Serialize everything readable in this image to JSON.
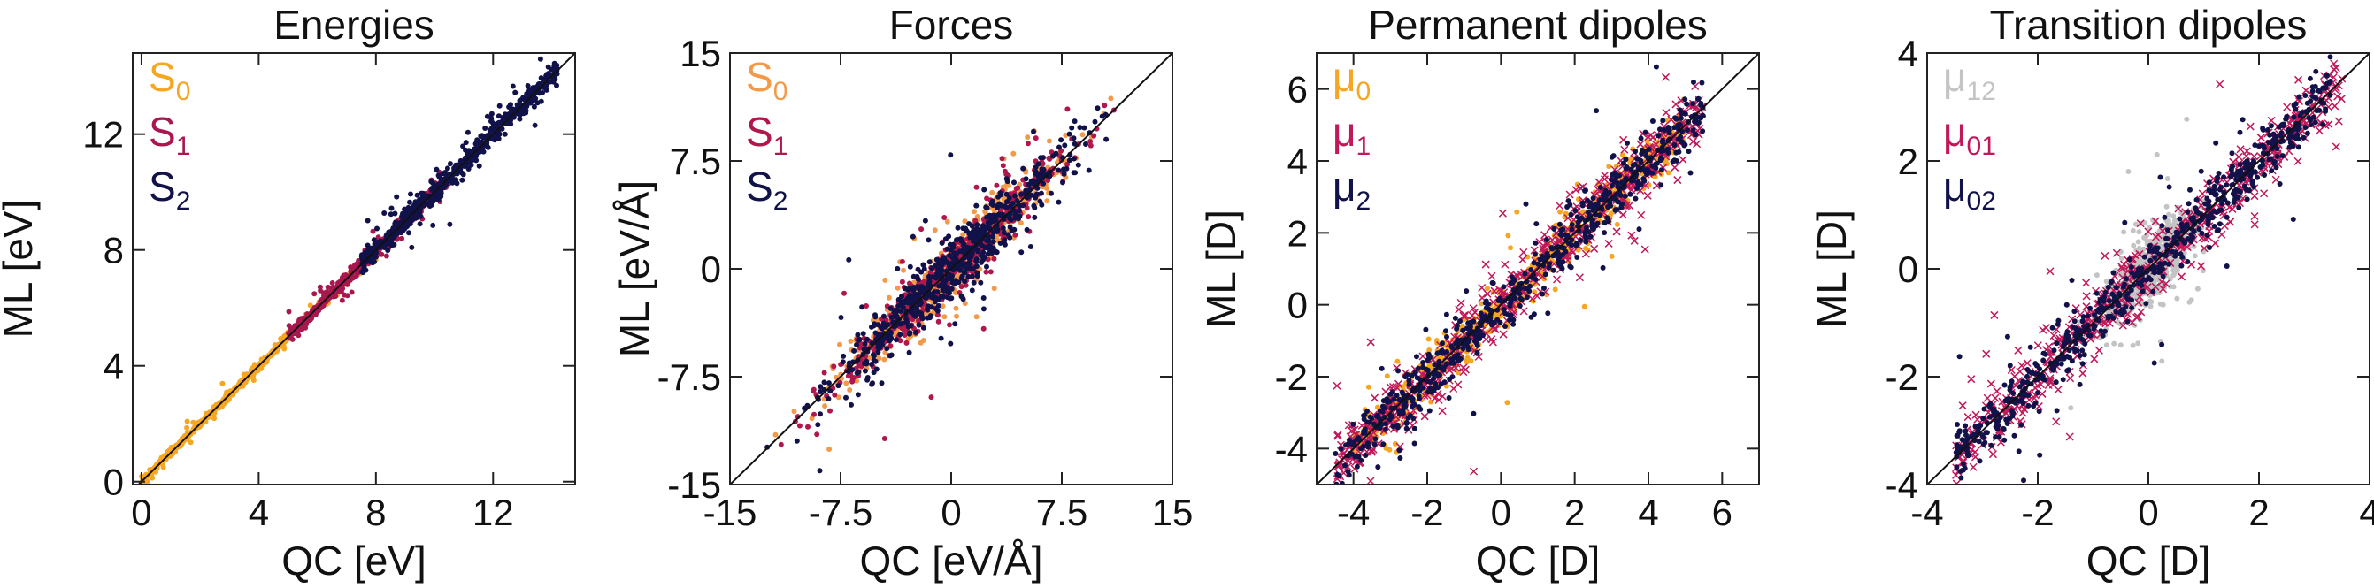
{
  "chart_data": [
    {
      "type": "scatter",
      "title": "Energies",
      "xlabel": "QC [eV]",
      "ylabel": "ML [eV]",
      "xlim": [
        -0.3,
        14.8
      ],
      "ylim": [
        -0.1,
        14.8
      ],
      "xticks": [
        0,
        4,
        8,
        12
      ],
      "yticks": [
        0,
        4,
        8,
        12
      ],
      "xtick_labels": [
        "0",
        "4",
        "8",
        "12"
      ],
      "ytick_labels": [
        "0",
        "4",
        "8",
        "12"
      ],
      "legend_position": "top-left",
      "series": [
        {
          "name": "S",
          "sub": "0",
          "color": "#f5a623",
          "range": [
            0,
            8
          ],
          "spread": 0.06
        },
        {
          "name": "S",
          "sub": "1",
          "color": "#a8174f",
          "range": [
            5,
            10.5
          ],
          "spread": 0.12
        },
        {
          "name": "S",
          "sub": "2",
          "color": "#12124a",
          "range": [
            7.5,
            14.2
          ],
          "spread": 0.18
        }
      ]
    },
    {
      "type": "scatter",
      "title": "Forces",
      "xlabel": "QC [eV/Å]",
      "ylabel": "ML [eV/Å]",
      "xlim": [
        -15,
        15
      ],
      "ylim": [
        -15,
        15
      ],
      "xticks": [
        -15,
        -7.5,
        0,
        7.5,
        15
      ],
      "yticks": [
        -15,
        -7.5,
        0,
        7.5,
        15
      ],
      "xtick_labels": [
        "-15",
        "-7.5",
        "0",
        "7.5",
        "15"
      ],
      "ytick_labels": [
        "-15",
        "-7.5",
        "0",
        "7.5",
        "15"
      ],
      "legend_position": "top-left",
      "series": [
        {
          "name": "S",
          "sub": "0",
          "color": "#f39a4a",
          "range": [
            -13,
            13
          ],
          "spread": 0.8
        },
        {
          "name": "S",
          "sub": "1",
          "color": "#b0174c",
          "range": [
            -13,
            13
          ],
          "spread": 0.8
        },
        {
          "name": "S",
          "sub": "2",
          "color": "#12124a",
          "range": [
            -14,
            14
          ],
          "spread": 1.0
        }
      ]
    },
    {
      "type": "scatter",
      "title": "Permanent dipoles",
      "xlabel": "QC [D]",
      "ylabel": "ML [D]",
      "xlim": [
        -5,
        7
      ],
      "ylim": [
        -5,
        7
      ],
      "xticks": [
        -4,
        -2,
        0,
        2,
        4,
        6
      ],
      "yticks": [
        -4,
        -2,
        0,
        2,
        4,
        6
      ],
      "xtick_labels": [
        "-4",
        "-2",
        "0",
        "2",
        "4",
        "6"
      ],
      "ytick_labels": [
        "-4",
        "-2",
        "0",
        "2",
        "4",
        "6"
      ],
      "legend_position": "top-left",
      "series": [
        {
          "name": "μ",
          "sub": "0",
          "color": "#f5a623",
          "range": [
            -4,
            5
          ],
          "spread": 0.3
        },
        {
          "name": "μ",
          "sub": "1",
          "color": "#c0185a",
          "range": [
            -4.5,
            5.5
          ],
          "spread": 0.45
        },
        {
          "name": "μ",
          "sub": "2",
          "color": "#12124a",
          "range": [
            -4.5,
            5.5
          ],
          "spread": 0.35
        }
      ]
    },
    {
      "type": "scatter",
      "title": "Transition dipoles",
      "xlabel": "QC [D]",
      "ylabel": "ML [D]",
      "xlim": [
        -4,
        4
      ],
      "ylim": [
        -4,
        4
      ],
      "xticks": [
        -4,
        -2,
        0,
        2,
        4
      ],
      "yticks": [
        -4,
        -2,
        0,
        2,
        4
      ],
      "xtick_labels": [
        "-4",
        "-2",
        "0",
        "2",
        "4"
      ],
      "ytick_labels": [
        "-4",
        "-2",
        "0",
        "2",
        "4"
      ],
      "legend_position": "top-left",
      "series": [
        {
          "name": "μ",
          "sub": "12",
          "color": "#c4c4c4",
          "range": [
            -1.5,
            1.5
          ],
          "spread": 0.25
        },
        {
          "name": "μ",
          "sub": "01",
          "color": "#c0185a",
          "range": [
            -3.5,
            3.5
          ],
          "spread": 0.3
        },
        {
          "name": "μ",
          "sub": "02",
          "color": "#12124a",
          "range": [
            -3.5,
            3.3
          ],
          "spread": 0.25
        }
      ]
    }
  ]
}
